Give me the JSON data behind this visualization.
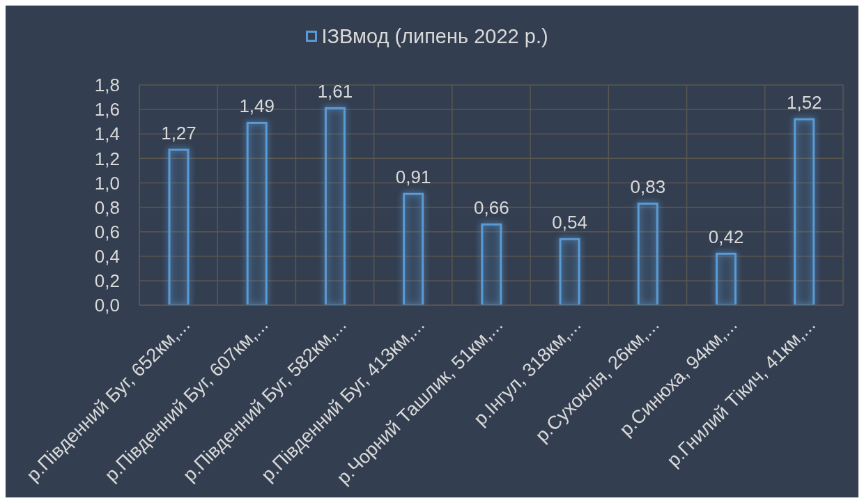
{
  "chart_data": {
    "type": "bar",
    "categories": [
      "р.Південний Буг, 652км,...",
      "р.Південний Буг, 607км,...",
      "р.Південний Буг, 582км,...",
      "р.Південний Буг, 413км,...",
      "р.Чорний Ташлик, 51км,...",
      "р.Інгул, 318км,...",
      "р.Сухоклія, 26км,...",
      "р.Синюха, 94км,...",
      "р.Гнилий Тікич, 41км,..."
    ],
    "series": [
      {
        "name": "ІЗВмод (липень 2022 р.)",
        "color": "#5b9bd5",
        "values": [
          1.27,
          1.49,
          1.61,
          0.91,
          0.66,
          0.54,
          0.83,
          0.42,
          1.52
        ],
        "value_labels": [
          "1,27",
          "1,49",
          "1,61",
          "0,91",
          "0,66",
          "0,54",
          "0,83",
          "0,42",
          "1,52"
        ]
      }
    ],
    "ylim": [
      0,
      1.8
    ],
    "yticks": [
      {
        "value": 0,
        "label": "0,0"
      },
      {
        "value": 0.2,
        "label": "0,2"
      },
      {
        "value": 0.4,
        "label": "0,4"
      },
      {
        "value": 0.6,
        "label": "0,6"
      },
      {
        "value": 0.8,
        "label": "0,8"
      },
      {
        "value": 1.0,
        "label": "1,0"
      },
      {
        "value": 1.2,
        "label": "1,2"
      },
      {
        "value": 1.4,
        "label": "1,4"
      },
      {
        "value": 1.6,
        "label": "1,6"
      },
      {
        "value": 1.8,
        "label": "1,8"
      }
    ],
    "grid": true,
    "legend": "top"
  }
}
